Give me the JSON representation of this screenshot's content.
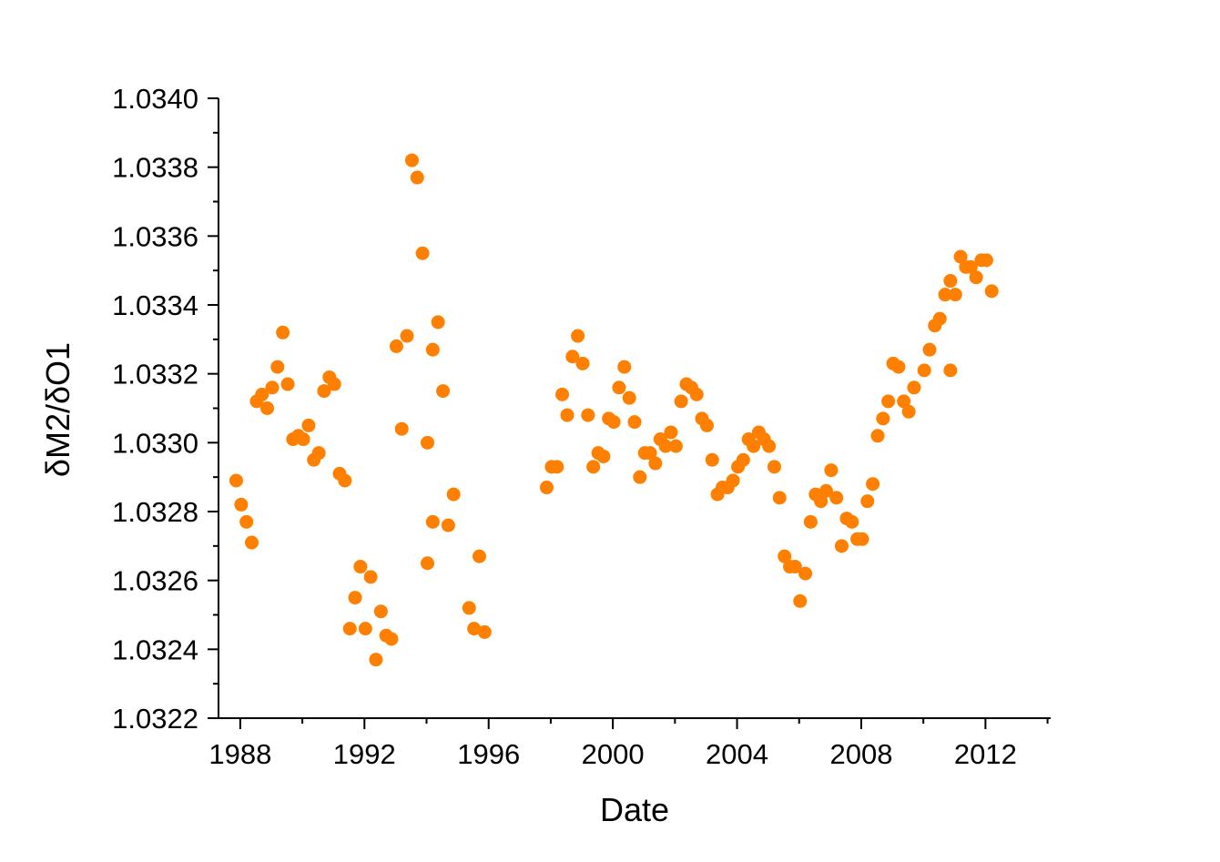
{
  "chart_data": {
    "type": "scatter",
    "title": "",
    "xlabel": "Date",
    "ylabel": "δM2/δO1",
    "xlim": [
      1987.3,
      2014.1
    ],
    "ylim": [
      1.0322,
      1.034
    ],
    "grid": false,
    "legend": "none",
    "marker_color": "#FF8000",
    "x_ticks": [
      "1988",
      "1992",
      "1996",
      "2000",
      "2004",
      "2008",
      "2012"
    ],
    "x_tick_values": [
      1988,
      1992,
      1996,
      2000,
      2004,
      2008,
      2012
    ],
    "y_ticks": [
      "1.0322",
      "1.0324",
      "1.0326",
      "1.0328",
      "1.0330",
      "1.0332",
      "1.0334",
      "1.0336",
      "1.0338",
      "1.0340"
    ],
    "y_tick_values": [
      1.0322,
      1.0324,
      1.0326,
      1.0328,
      1.033,
      1.0332,
      1.0334,
      1.0336,
      1.0338,
      1.034
    ],
    "points": [
      [
        1987.87,
        1.03289
      ],
      [
        1988.03,
        1.03282
      ],
      [
        1988.2,
        1.03277
      ],
      [
        1988.37,
        1.03271
      ],
      [
        1988.53,
        1.03312
      ],
      [
        1988.7,
        1.03314
      ],
      [
        1988.87,
        1.0331
      ],
      [
        1989.03,
        1.03316
      ],
      [
        1989.2,
        1.03322
      ],
      [
        1989.37,
        1.03332
      ],
      [
        1989.53,
        1.03317
      ],
      [
        1989.7,
        1.03301
      ],
      [
        1989.87,
        1.03302
      ],
      [
        1990.03,
        1.03301
      ],
      [
        1990.2,
        1.03305
      ],
      [
        1990.37,
        1.03295
      ],
      [
        1990.53,
        1.03297
      ],
      [
        1990.7,
        1.03315
      ],
      [
        1990.87,
        1.03319
      ],
      [
        1991.03,
        1.03317
      ],
      [
        1991.2,
        1.03291
      ],
      [
        1991.37,
        1.03289
      ],
      [
        1991.53,
        1.03246
      ],
      [
        1991.7,
        1.03255
      ],
      [
        1991.87,
        1.03264
      ],
      [
        1992.03,
        1.03246
      ],
      [
        1992.2,
        1.03261
      ],
      [
        1992.37,
        1.03237
      ],
      [
        1992.53,
        1.03251
      ],
      [
        1992.7,
        1.03244
      ],
      [
        1992.87,
        1.03243
      ],
      [
        1993.03,
        1.03328
      ],
      [
        1993.2,
        1.03304
      ],
      [
        1993.37,
        1.03331
      ],
      [
        1993.53,
        1.03382
      ],
      [
        1993.7,
        1.03377
      ],
      [
        1993.87,
        1.03355
      ],
      [
        1994.03,
        1.033
      ],
      [
        1994.03,
        1.03265
      ],
      [
        1994.2,
        1.03327
      ],
      [
        1994.2,
        1.03277
      ],
      [
        1994.37,
        1.03335
      ],
      [
        1994.53,
        1.03315
      ],
      [
        1994.7,
        1.03276
      ],
      [
        1994.87,
        1.03285
      ],
      [
        1995.37,
        1.03252
      ],
      [
        1995.53,
        1.03246
      ],
      [
        1995.7,
        1.03267
      ],
      [
        1995.87,
        1.03245
      ],
      [
        1997.87,
        1.03287
      ],
      [
        1998.03,
        1.03293
      ],
      [
        1998.2,
        1.03293
      ],
      [
        1998.37,
        1.03314
      ],
      [
        1998.53,
        1.03308
      ],
      [
        1998.7,
        1.03325
      ],
      [
        1998.87,
        1.03331
      ],
      [
        1999.03,
        1.03323
      ],
      [
        1999.2,
        1.03308
      ],
      [
        1999.37,
        1.03293
      ],
      [
        1999.53,
        1.03297
      ],
      [
        1999.7,
        1.03296
      ],
      [
        1999.87,
        1.03307
      ],
      [
        2000.03,
        1.03306
      ],
      [
        2000.2,
        1.03316
      ],
      [
        2000.37,
        1.03322
      ],
      [
        2000.53,
        1.03313
      ],
      [
        2000.7,
        1.03306
      ],
      [
        2000.87,
        1.0329
      ],
      [
        2001.03,
        1.03297
      ],
      [
        2001.2,
        1.03297
      ],
      [
        2001.37,
        1.03294
      ],
      [
        2001.53,
        1.03301
      ],
      [
        2001.7,
        1.03299
      ],
      [
        2001.87,
        1.03303
      ],
      [
        2002.03,
        1.03299
      ],
      [
        2002.2,
        1.03312
      ],
      [
        2002.37,
        1.03317
      ],
      [
        2002.53,
        1.03316
      ],
      [
        2002.7,
        1.03314
      ],
      [
        2002.87,
        1.03307
      ],
      [
        2003.03,
        1.03305
      ],
      [
        2003.2,
        1.03295
      ],
      [
        2003.37,
        1.03285
      ],
      [
        2003.53,
        1.03287
      ],
      [
        2003.7,
        1.03287
      ],
      [
        2003.87,
        1.03289
      ],
      [
        2004.03,
        1.03293
      ],
      [
        2004.2,
        1.03295
      ],
      [
        2004.37,
        1.03301
      ],
      [
        2004.53,
        1.03299
      ],
      [
        2004.7,
        1.03303
      ],
      [
        2004.87,
        1.03301
      ],
      [
        2005.03,
        1.03299
      ],
      [
        2005.2,
        1.03293
      ],
      [
        2005.37,
        1.03284
      ],
      [
        2005.53,
        1.03267
      ],
      [
        2005.7,
        1.03264
      ],
      [
        2005.87,
        1.03264
      ],
      [
        2006.03,
        1.03254
      ],
      [
        2006.2,
        1.03262
      ],
      [
        2006.37,
        1.03277
      ],
      [
        2006.53,
        1.03285
      ],
      [
        2006.7,
        1.03283
      ],
      [
        2006.87,
        1.03286
      ],
      [
        2007.03,
        1.03292
      ],
      [
        2007.2,
        1.03284
      ],
      [
        2007.37,
        1.0327
      ],
      [
        2007.53,
        1.03278
      ],
      [
        2007.7,
        1.03277
      ],
      [
        2007.87,
        1.03272
      ],
      [
        2008.03,
        1.03272
      ],
      [
        2008.2,
        1.03283
      ],
      [
        2008.37,
        1.03288
      ],
      [
        2008.53,
        1.03302
      ],
      [
        2008.7,
        1.03307
      ],
      [
        2008.87,
        1.03312
      ],
      [
        2009.03,
        1.03323
      ],
      [
        2009.2,
        1.03322
      ],
      [
        2009.37,
        1.03312
      ],
      [
        2009.53,
        1.03309
      ],
      [
        2009.7,
        1.03316
      ],
      [
        2010.03,
        1.03321
      ],
      [
        2010.2,
        1.03327
      ],
      [
        2010.37,
        1.03334
      ],
      [
        2010.53,
        1.03336
      ],
      [
        2010.7,
        1.03343
      ],
      [
        2010.87,
        1.03347
      ],
      [
        2010.87,
        1.03321
      ],
      [
        2011.03,
        1.03343
      ],
      [
        2011.2,
        1.03354
      ],
      [
        2011.37,
        1.03351
      ],
      [
        2011.53,
        1.03351
      ],
      [
        2011.7,
        1.03348
      ],
      [
        2011.87,
        1.03353
      ],
      [
        2012.03,
        1.03353
      ],
      [
        2012.2,
        1.03344
      ]
    ]
  }
}
